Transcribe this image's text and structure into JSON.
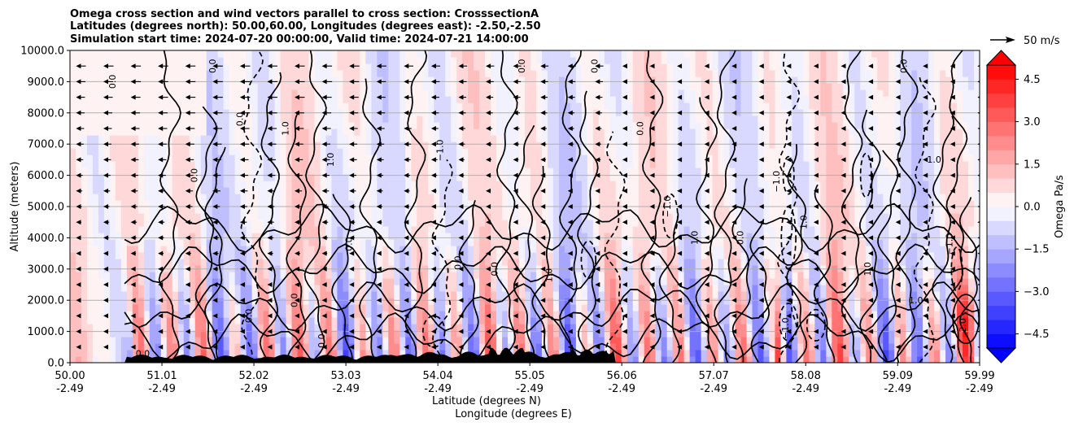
{
  "chart_data": {
    "type": "contour",
    "title_lines": [
      "Omega cross section and wind vectors parallel to cross section: CrosssectionA",
      "Latitudes (degrees north): 50.00,60.00, Longitudes (degrees east): -2.50,-2.50",
      "Simulation start time: 2024-07-20 00:00:00, Valid time: 2024-07-21 14:00:00"
    ],
    "ylabel": "Altitude (meters)",
    "xlabel_lines": [
      "Latitude (degrees N)",
      "Longitude (degrees E)"
    ],
    "ylim": [
      0,
      10000
    ],
    "xlim": [
      50.0,
      59.99
    ],
    "y_ticks": [
      "0.0",
      "1000.0",
      "2000.0",
      "3000.0",
      "4000.0",
      "5000.0",
      "6000.0",
      "7000.0",
      "8000.0",
      "9000.0",
      "10000.0"
    ],
    "x_ticks": [
      {
        "lat": "50.00",
        "lon": "-2.49"
      },
      {
        "lat": "51.01",
        "lon": "-2.49"
      },
      {
        "lat": "52.02",
        "lon": "-2.49"
      },
      {
        "lat": "53.03",
        "lon": "-2.49"
      },
      {
        "lat": "54.04",
        "lon": "-2.49"
      },
      {
        "lat": "55.05",
        "lon": "-2.49"
      },
      {
        "lat": "56.06",
        "lon": "-2.49"
      },
      {
        "lat": "57.07",
        "lon": "-2.49"
      },
      {
        "lat": "58.08",
        "lon": "-2.49"
      },
      {
        "lat": "59.09",
        "lon": "-2.49"
      },
      {
        "lat": "59.99",
        "lon": "-2.49"
      }
    ],
    "grid": "horizontal",
    "colorbar": {
      "label": "Omega Pa/s",
      "range": [
        -5.0,
        5.0
      ],
      "ticks": [
        "4.5",
        "3.0",
        "1.5",
        "0.0",
        "−1.5",
        "−3.0",
        "−4.5"
      ],
      "colors": "bwr"
    },
    "quiver_key": {
      "label": "50 m/s"
    },
    "contour_labels": [
      "0.0",
      "0.0",
      "0.0",
      "0.0",
      "0.0",
      "0.0",
      "0.0",
      "0.0",
      "0.0",
      "0.0",
      "0.0",
      "0.0",
      "0.0",
      "0.0",
      "0.0",
      "0.0",
      "1.0",
      "1.0",
      "1.0",
      "1.0",
      "1.0",
      "1.0",
      "1.0",
      "1.0",
      "−1.0",
      "−1.0",
      "−1.0",
      "−1.0",
      "−1.0",
      "2.0"
    ]
  }
}
